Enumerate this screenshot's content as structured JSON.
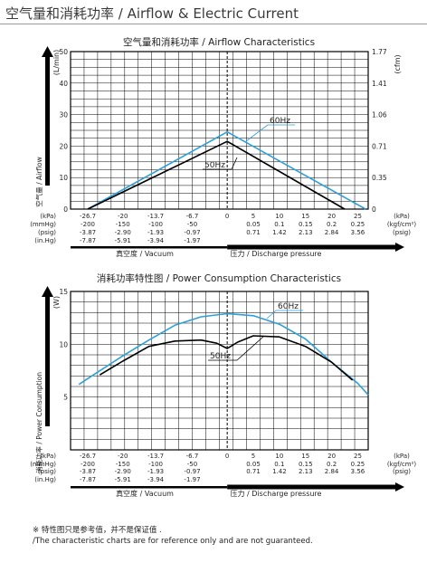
{
  "page": {
    "title": "空气量和消耗功率 / Airflow & Electric Current"
  },
  "footnote": {
    "line1": "※ 特性图只是参考值，并不是保证值 .",
    "line2": "/The characteristic charts are for reference only and are not guaranteed."
  },
  "colors": {
    "series_60hz": "#2e9fd6",
    "series_50hz": "#000000",
    "grid": "#000000",
    "dashed_zero": "#000000"
  },
  "chart_data": [
    {
      "type": "line",
      "title": "空气量和消耗功率 / Airflow Characteristics",
      "ylabel": "空气量 / Airflow",
      "ylabel_unit": "(L/min)",
      "ylabel_right_unit": "(cfm)",
      "ylim": [
        0,
        50
      ],
      "yticks": [
        "0",
        "10",
        "20",
        "30",
        "40",
        "50"
      ],
      "yticks_right": [
        "0",
        "0.35",
        "0.71",
        "1.06",
        "1.41",
        "1.77"
      ],
      "xlim": [
        -30,
        27
      ],
      "x_tick_positions": [
        -26.7,
        -20,
        -13.7,
        -6.7,
        0,
        5,
        10,
        15,
        20,
        25
      ],
      "x_tick_rows": [
        {
          "label": "(kPa)",
          "values": [
            "-26.7",
            "-20",
            "-13.7",
            "-6.7",
            "0",
            "5",
            "10",
            "15",
            "20",
            "25"
          ],
          "right": "(kPa)"
        },
        {
          "label": "(mmHg)",
          "values": [
            "-200",
            "-150",
            "-100",
            "-50",
            "",
            "0.05",
            "0.1",
            "0.15",
            "0.2",
            "0.25"
          ],
          "right": "(kgf/cm²)"
        },
        {
          "label": "(psig)",
          "values": [
            "-3.87",
            "-2.90",
            "-1.93",
            "-0.97",
            "",
            "0.71",
            "1.42",
            "2.13",
            "2.84",
            "3.56"
          ],
          "right": "(psig)"
        },
        {
          "label": "(in.Hg)",
          "values": [
            "-7.87",
            "-5.91",
            "-3.94",
            "-1.97",
            "",
            "",
            "",
            "",
            "",
            ""
          ],
          "right": ""
        }
      ],
      "vacuum_label": "真空度 / Vacuum",
      "pressure_label": "压力 / Discharge pressure",
      "series": [
        {
          "name": "60Hz",
          "x": [
            -26.7,
            0,
            26.5
          ],
          "y": [
            0,
            24.5,
            0
          ]
        },
        {
          "name": "50Hz",
          "x": [
            -26.7,
            0,
            22.5
          ],
          "y": [
            0,
            21.5,
            0
          ]
        }
      ]
    },
    {
      "type": "line",
      "title": "消耗功率特性图 / Power Consumption Characteristics",
      "ylabel": "消耗功率 / Power Consumption",
      "ylabel_unit": "(W)",
      "ylim": [
        0,
        15
      ],
      "yticks": [
        "5",
        "10",
        "15"
      ],
      "xlim": [
        -30,
        27
      ],
      "x_tick_positions": [
        -26.7,
        -20,
        -13.7,
        -6.7,
        0,
        5,
        10,
        15,
        20,
        25
      ],
      "x_tick_rows": [
        {
          "label": "(kPa)",
          "values": [
            "-26.7",
            "-20",
            "-13.7",
            "-6.7",
            "0",
            "5",
            "10",
            "15",
            "20",
            "25"
          ],
          "right": "(kPa)"
        },
        {
          "label": "(mmHg)",
          "values": [
            "-200",
            "-150",
            "-100",
            "-50",
            "",
            "0.05",
            "0.1",
            "0.15",
            "0.2",
            "0.25"
          ],
          "right": "(kgf/cm²)"
        },
        {
          "label": "(psig)",
          "values": [
            "-3.87",
            "-2.90",
            "-1.93",
            "-0.97",
            "",
            "0.71",
            "1.42",
            "2.13",
            "2.84",
            "3.56"
          ],
          "right": "(psig)"
        },
        {
          "label": "(in.Hg)",
          "values": [
            "-7.87",
            "-5.91",
            "-3.94",
            "-1.97",
            "",
            "",
            "",
            "",
            "",
            ""
          ],
          "right": ""
        }
      ],
      "vacuum_label": "真空度 / Vacuum",
      "pressure_label": "压力 / Discharge pressure",
      "series": [
        {
          "name": "60Hz",
          "x": [
            -28.4,
            -25,
            -20,
            -15,
            -10,
            -5,
            0,
            5,
            10,
            15,
            20,
            25,
            27
          ],
          "y": [
            6.2,
            7.3,
            8.9,
            10.4,
            11.8,
            12.6,
            12.9,
            12.7,
            11.9,
            10.5,
            8.3,
            6.3,
            5.2
          ]
        },
        {
          "name": "50Hz",
          "x": [
            -24.4,
            -20,
            -15,
            -10,
            -5,
            -2,
            0,
            2,
            5,
            10,
            15,
            20,
            24
          ],
          "y": [
            7.1,
            8.4,
            9.8,
            10.3,
            10.4,
            10.1,
            9.6,
            10.2,
            10.8,
            10.7,
            9.8,
            8.3,
            6.6
          ]
        }
      ]
    }
  ]
}
